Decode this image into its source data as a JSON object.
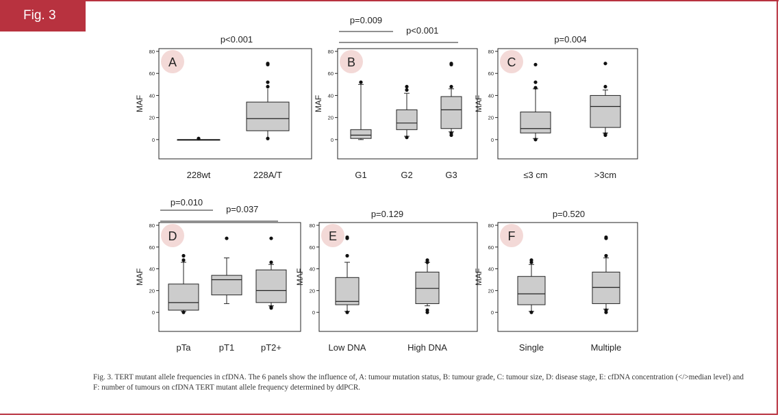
{
  "figure": {
    "tab_label": "Fig. 3",
    "caption": "Fig. 3. TERT mutant allele frequencies in cfDNA. The 6 panels show the influence of, A: tumour mutation status, B: tumour grade, C: tumour size, D: disease stage, E: cfDNA concentration (</>median level) and F: number of tumours on cfDNA TERT mutant allele frequency determined by ddPCR.",
    "colors": {
      "accent": "#b8323f",
      "box_fill": "#cccccc",
      "badge": "#f3d9d7"
    }
  },
  "chart_data": [
    {
      "type": "box",
      "panel": "A",
      "ylabel": "MAF",
      "ylim": [
        -15,
        80
      ],
      "yticks": [
        0,
        20,
        40,
        60,
        80
      ],
      "categories": [
        "228wt",
        "228A/T"
      ],
      "boxes": [
        {
          "min": 0,
          "q1": 0,
          "median": 0,
          "q3": 0,
          "max": 0,
          "outliers": [
            1
          ]
        },
        {
          "min": 2,
          "q1": 8,
          "median": 19,
          "q3": 34,
          "max": 46,
          "outliers": [
            1,
            48,
            52,
            68,
            69
          ]
        }
      ],
      "significance": [
        {
          "label": "p<0.001",
          "between": [
            0,
            1
          ],
          "bracket": false
        }
      ]
    },
    {
      "type": "box",
      "panel": "B",
      "ylabel": "MAF",
      "ylim": [
        -15,
        80
      ],
      "yticks": [
        0,
        20,
        40,
        60,
        80
      ],
      "categories": [
        "G1",
        "G2",
        "G3"
      ],
      "boxes": [
        {
          "min": 0,
          "q1": 1,
          "median": 4,
          "q3": 9,
          "max": 50,
          "outliers": [
            52
          ]
        },
        {
          "min": 3,
          "q1": 9,
          "median": 15,
          "q3": 27,
          "max": 42,
          "outliers": [
            2,
            45,
            48
          ]
        },
        {
          "min": 7,
          "q1": 10,
          "median": 27,
          "q3": 39,
          "max": 46,
          "outliers": [
            4,
            6,
            48,
            68,
            69
          ]
        }
      ],
      "significance": [
        {
          "label": "p=0.009",
          "between": [
            0,
            1
          ],
          "bracket": true
        },
        {
          "label": "p<0.001",
          "between": [
            0,
            2
          ],
          "bracket": true
        }
      ]
    },
    {
      "type": "box",
      "panel": "C",
      "ylabel": "MAF",
      "ylim": [
        -15,
        80
      ],
      "yticks": [
        0,
        20,
        40,
        60,
        80
      ],
      "categories": [
        "≤3 cm",
        ">3cm"
      ],
      "boxes": [
        {
          "min": 1,
          "q1": 6,
          "median": 10,
          "q3": 25,
          "max": 46,
          "outliers": [
            0,
            47,
            52,
            68
          ]
        },
        {
          "min": 6,
          "q1": 11,
          "median": 30,
          "q3": 40,
          "max": 45,
          "outliers": [
            4,
            5,
            48,
            69
          ]
        }
      ],
      "significance": [
        {
          "label": "p=0.004",
          "between": [
            0,
            1
          ],
          "bracket": false
        }
      ]
    },
    {
      "type": "box",
      "panel": "D",
      "ylabel": "MAF",
      "ylim": [
        -15,
        80
      ],
      "yticks": [
        0,
        20,
        40,
        60,
        80
      ],
      "categories": [
        "pTa",
        "pT1",
        "pT2+"
      ],
      "boxes": [
        {
          "min": 1,
          "q1": 2,
          "median": 9,
          "q3": 26,
          "max": 46,
          "outliers": [
            0,
            48,
            52
          ]
        },
        {
          "min": 8,
          "q1": 16,
          "median": 30,
          "q3": 34,
          "max": 50,
          "outliers": [
            68
          ]
        },
        {
          "min": 6,
          "q1": 9,
          "median": 20,
          "q3": 39,
          "max": 44,
          "outliers": [
            4,
            5,
            46,
            68
          ]
        }
      ],
      "significance": [
        {
          "label": "p=0.010",
          "between": [
            0,
            1
          ],
          "bracket": true
        },
        {
          "label": "p=0.037",
          "between": [
            0,
            2
          ],
          "bracket": true
        }
      ]
    },
    {
      "type": "box",
      "panel": "E",
      "ylabel": "MAF",
      "ylim": [
        -15,
        80
      ],
      "yticks": [
        0,
        20,
        40,
        60,
        80
      ],
      "categories": [
        "Low DNA",
        "High DNA"
      ],
      "boxes": [
        {
          "min": 1,
          "q1": 7,
          "median": 10,
          "q3": 32,
          "max": 46,
          "outliers": [
            0,
            52,
            68,
            69
          ]
        },
        {
          "min": 6,
          "q1": 8,
          "median": 22,
          "q3": 37,
          "max": 46,
          "outliers": [
            0,
            2,
            46,
            48
          ]
        }
      ],
      "significance": [
        {
          "label": "p=0.129",
          "between": [
            0,
            1
          ],
          "bracket": false
        }
      ]
    },
    {
      "type": "box",
      "panel": "F",
      "ylabel": "MAF",
      "ylim": [
        -15,
        80
      ],
      "yticks": [
        0,
        20,
        40,
        60,
        80
      ],
      "categories": [
        "Single",
        "Multiple"
      ],
      "boxes": [
        {
          "min": 1,
          "q1": 7,
          "median": 17,
          "q3": 33,
          "max": 44,
          "outliers": [
            0,
            46,
            48
          ]
        },
        {
          "min": 3,
          "q1": 8,
          "median": 23,
          "q3": 37,
          "max": 50,
          "outliers": [
            0,
            2,
            52,
            68,
            69
          ]
        }
      ],
      "significance": [
        {
          "label": "p=0.520",
          "between": [
            0,
            1
          ],
          "bracket": false
        }
      ]
    }
  ]
}
